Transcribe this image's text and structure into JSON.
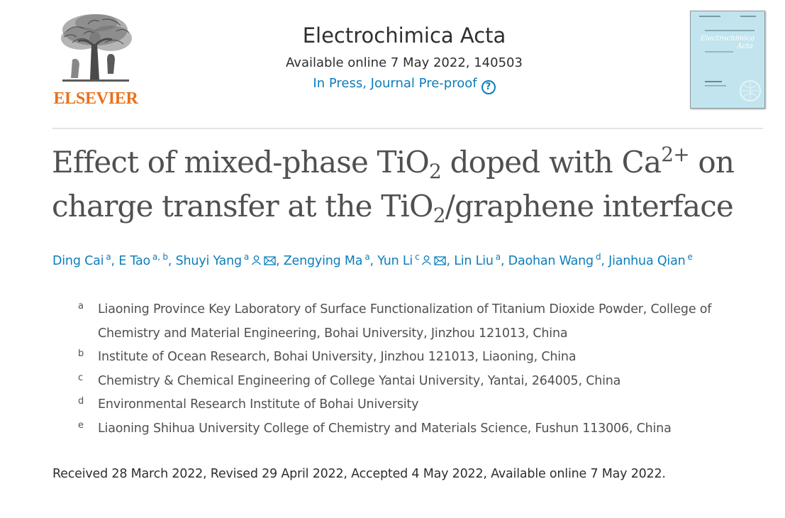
{
  "publisher": {
    "wordmark": "ELSEVIER"
  },
  "journal": {
    "title": "Electrochimica Acta",
    "issue": "Available online 7 May 2022, 140503",
    "status": "In Press, Journal Pre-proof",
    "help_icon": "question-circle-icon",
    "cover_text": [
      "Electrochimica",
      "Acta"
    ]
  },
  "article": {
    "title_parts": [
      "Effect of mixed-phase TiO",
      "2",
      " doped with Ca",
      "2+",
      " on",
      "charge transfer at the TiO",
      "2",
      "/graphene interface"
    ]
  },
  "authors": [
    {
      "name": "Ding Cai",
      "sup": "a",
      "sep": ", "
    },
    {
      "name": "E Tao",
      "sup": "a, b",
      "sep": ", "
    },
    {
      "name": "Shuyi Yang",
      "sup": "a",
      "icons": [
        "person-icon",
        "envelope-icon"
      ],
      "sep": ", "
    },
    {
      "name": "Zengying Ma",
      "sup": "a",
      "sep": ", "
    },
    {
      "name": "Yun Li",
      "sup": "c",
      "icons": [
        "person-icon",
        "envelope-icon"
      ],
      "sep": ", "
    },
    {
      "name": "Lin Liu",
      "sup": "a",
      "sep": ", "
    },
    {
      "name": "Daohan Wang",
      "sup": "d",
      "sep": ", "
    },
    {
      "name": "Jianhua Qian",
      "sup": "e",
      "sep": ""
    }
  ],
  "affiliations": [
    {
      "label": "a",
      "text": "Liaoning Province Key Laboratory of Surface Functionalization of Titanium Dioxide Powder, College of Chemistry and Material Engineering, Bohai University, Jinzhou 121013, China"
    },
    {
      "label": "b",
      "text": "Institute of Ocean Research, Bohai University, Jinzhou 121013, Liaoning, China"
    },
    {
      "label": "c",
      "text": "Chemistry & Chemical Engineering of College Yantai University, Yantai, 264005, China"
    },
    {
      "label": "d",
      "text": "Environmental Research Institute of Bohai University"
    },
    {
      "label": "e",
      "text": "Liaoning Shihua University College of Chemistry and Materials Science, Fushun 113006, China"
    }
  ],
  "history": "Received 28 March 2022, Revised 29 April 2022, Accepted 4 May 2022, Available online 7 May 2022.",
  "colors": {
    "link": "#0c7dbb",
    "brand": "#e9711c",
    "title": "#505050",
    "text": "#2e2e2e"
  }
}
